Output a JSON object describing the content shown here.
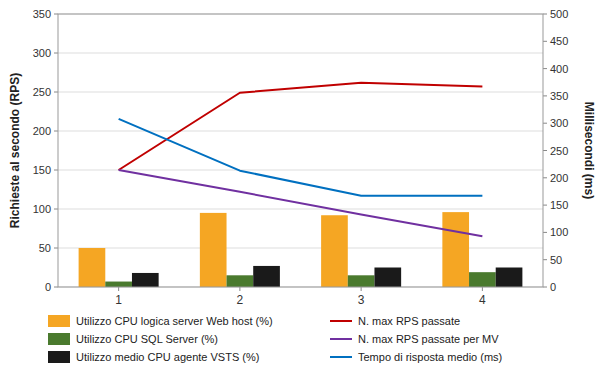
{
  "chart_data": {
    "type": "bar",
    "x": [
      1,
      2,
      3,
      4
    ],
    "xlim": [
      0.5,
      4.5
    ],
    "xticks": [
      1,
      2,
      3,
      4
    ],
    "ylim": [
      0,
      350
    ],
    "yticks": [
      0,
      50,
      100,
      150,
      200,
      250,
      300,
      350
    ],
    "y2lim": [
      0,
      500
    ],
    "y2ticks": [
      0,
      50,
      100,
      150,
      200,
      250,
      300,
      350,
      400,
      450,
      500
    ],
    "y_label": "Richieste al secondo (RPS)",
    "y2_label": "Millisecondi (ms)",
    "grid": true,
    "legend": "bottom",
    "series": [
      {
        "name": "Utilizzo CPU logica server Web host (%)",
        "type": "bar",
        "color": "#F5A623",
        "values": [
          50,
          95,
          92,
          96
        ]
      },
      {
        "name": "Utilizzo CPU SQL Server (%)",
        "type": "bar",
        "color": "#4A7A2E",
        "values": [
          7,
          15,
          15,
          19
        ]
      },
      {
        "name": "Utilizzo medio CPU agente VSTS (%)",
        "type": "bar",
        "color": "#1A1A1A",
        "values": [
          18,
          27,
          25,
          25
        ]
      },
      {
        "name": "N. max RPS passate",
        "type": "line",
        "color": "#C00000",
        "values": [
          150,
          249,
          262,
          257
        ]
      },
      {
        "name": "N. max RPS passate per MV",
        "type": "line",
        "color": "#7030A0",
        "values": [
          150,
          122,
          93,
          65
        ]
      },
      {
        "name": "Tempo di risposta medio (ms)",
        "type": "line",
        "color": "#0070C0",
        "values": [
          308,
          213,
          167,
          167
        ],
        "axis": "y2"
      }
    ]
  }
}
